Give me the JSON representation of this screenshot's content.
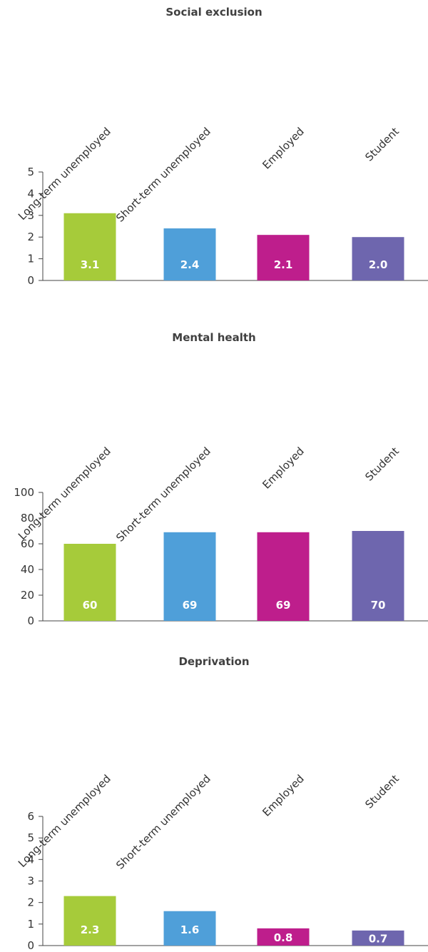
{
  "colors": [
    "#a6cb3a",
    "#4f9fd9",
    "#be1e8c",
    "#6e66ae"
  ],
  "chart_data": [
    {
      "type": "bar",
      "title": "Social exclusion",
      "categories": [
        "Long-term unemployed",
        "Short-term unemployed",
        "Employed",
        "Student"
      ],
      "values": [
        3.1,
        2.4,
        2.1,
        2.0
      ],
      "labels": [
        "3.1",
        "2.4",
        "2.1",
        "2.0"
      ],
      "ylim": [
        0,
        5
      ],
      "yticks": [
        "0",
        "1",
        "2",
        "3",
        "4",
        "5"
      ],
      "grid": false
    },
    {
      "type": "bar",
      "title": "Mental health",
      "categories": [
        "Long-term unemployed",
        "Short-term unemployed",
        "Employed",
        "Student"
      ],
      "values": [
        60,
        69,
        69,
        70
      ],
      "labels": [
        "60",
        "69",
        "69",
        "70"
      ],
      "ylim": [
        0,
        100
      ],
      "yticks": [
        "0",
        "20",
        "40",
        "60",
        "80",
        "100"
      ],
      "grid": false
    },
    {
      "type": "bar",
      "title": "Deprivation",
      "categories": [
        "Long-term unemployed",
        "Short-term unemployed",
        "Employed",
        "Student"
      ],
      "values": [
        2.3,
        1.6,
        0.8,
        0.7
      ],
      "labels": [
        "2.3",
        "1.6",
        "0.8",
        "0.7"
      ],
      "ylim": [
        0,
        6
      ],
      "yticks": [
        "0",
        "1",
        "2",
        "3",
        "4",
        "5",
        "6"
      ],
      "grid": false
    }
  ]
}
